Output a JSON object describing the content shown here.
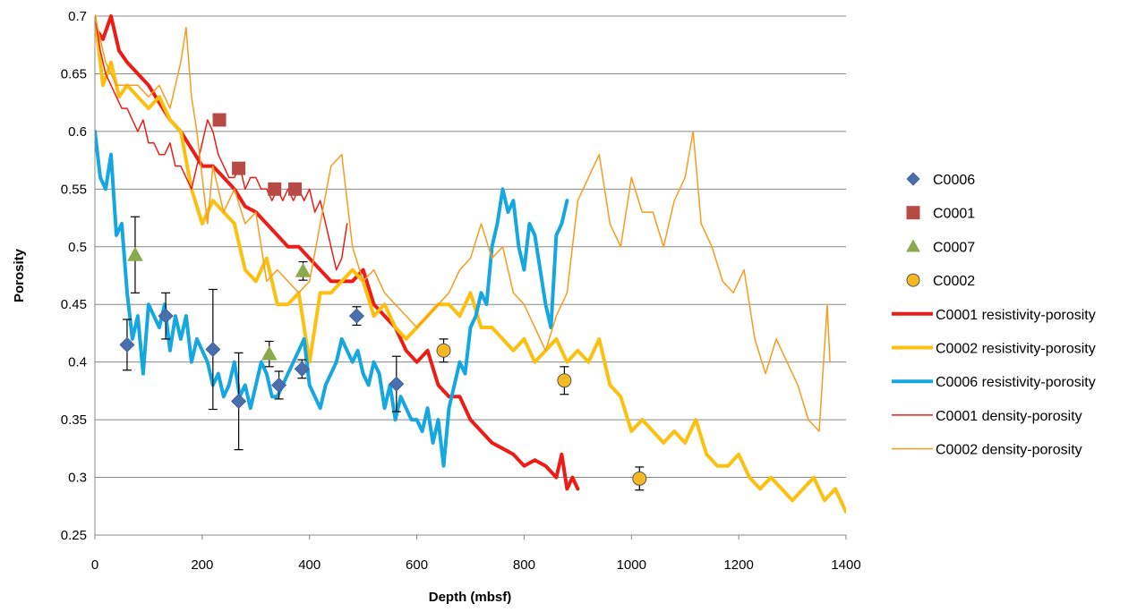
{
  "chart_data": {
    "type": "line",
    "xlabel": "Depth (mbsf)",
    "ylabel": "Porosity",
    "xlim": [
      0,
      1400
    ],
    "ylim": [
      0.25,
      0.7
    ],
    "xticks": [
      "0",
      "200",
      "400",
      "600",
      "800",
      "1000",
      "1200",
      "1400"
    ],
    "yticks": [
      "0.25",
      "0.3",
      "0.35",
      "0.4",
      "0.45",
      "0.5",
      "0.55",
      "0.6",
      "0.65",
      "0.7"
    ],
    "grid": "horizontal",
    "legend_position": "right",
    "marker_series": [
      {
        "name": "C0006",
        "marker": "diamond",
        "color": "#4a6fad",
        "points": [
          {
            "x": 60,
            "y": 0.415,
            "err": 0.022
          },
          {
            "x": 132,
            "y": 0.44,
            "err": 0.02
          },
          {
            "x": 220,
            "y": 0.411,
            "err": 0.052
          },
          {
            "x": 268,
            "y": 0.366,
            "err": 0.042
          },
          {
            "x": 343,
            "y": 0.38,
            "err": 0.012
          },
          {
            "x": 386,
            "y": 0.394,
            "err": 0.008
          },
          {
            "x": 488,
            "y": 0.44,
            "err": 0.008
          },
          {
            "x": 562,
            "y": 0.381,
            "err": 0.024
          }
        ]
      },
      {
        "name": "C0001",
        "marker": "square",
        "color": "#b84a46",
        "points": [
          {
            "x": 232,
            "y": 0.61
          },
          {
            "x": 268,
            "y": 0.568
          },
          {
            "x": 335,
            "y": 0.55
          },
          {
            "x": 373,
            "y": 0.55
          }
        ]
      },
      {
        "name": "C0007",
        "marker": "triangle",
        "color": "#8aaa4e",
        "points": [
          {
            "x": 75,
            "y": 0.493,
            "err": 0.033
          },
          {
            "x": 325,
            "y": 0.407,
            "err": 0.011
          },
          {
            "x": 388,
            "y": 0.479,
            "err": 0.008
          }
        ]
      },
      {
        "name": "C0002",
        "marker": "circle",
        "color": "#f5b820",
        "points": [
          {
            "x": 650,
            "y": 0.41,
            "err": 0.01
          },
          {
            "x": 875,
            "y": 0.384,
            "err": 0.012
          },
          {
            "x": 1015,
            "y": 0.299,
            "err": 0.01
          }
        ]
      }
    ],
    "line_series": [
      {
        "name": "C0001 resistivity-porosity",
        "color": "#ee1c16",
        "width": 4,
        "x": [
          0,
          15,
          30,
          45,
          60,
          80,
          100,
          120,
          140,
          160,
          180,
          200,
          220,
          240,
          260,
          280,
          300,
          320,
          340,
          360,
          380,
          400,
          420,
          440,
          460,
          480,
          500,
          520,
          540,
          560,
          580,
          600,
          620,
          640,
          660,
          680,
          700,
          720,
          740,
          760,
          780,
          800,
          820,
          840,
          860,
          870,
          880,
          890,
          900
        ],
        "y": [
          0.69,
          0.68,
          0.7,
          0.67,
          0.66,
          0.65,
          0.64,
          0.625,
          0.61,
          0.6,
          0.585,
          0.57,
          0.57,
          0.56,
          0.55,
          0.535,
          0.53,
          0.52,
          0.51,
          0.5,
          0.5,
          0.49,
          0.48,
          0.47,
          0.47,
          0.47,
          0.48,
          0.45,
          0.44,
          0.43,
          0.41,
          0.4,
          0.41,
          0.38,
          0.37,
          0.37,
          0.35,
          0.34,
          0.33,
          0.325,
          0.32,
          0.31,
          0.315,
          0.31,
          0.3,
          0.32,
          0.29,
          0.3,
          0.29
        ]
      },
      {
        "name": "C0002 resistivity-porosity",
        "color": "#fcc010",
        "width": 4,
        "x": [
          0,
          15,
          30,
          45,
          60,
          80,
          100,
          120,
          140,
          160,
          180,
          200,
          220,
          240,
          260,
          280,
          300,
          320,
          340,
          360,
          380,
          400,
          420,
          440,
          460,
          480,
          500,
          520,
          540,
          560,
          580,
          600,
          620,
          640,
          660,
          680,
          700,
          720,
          740,
          760,
          780,
          800,
          820,
          840,
          860,
          880,
          900,
          920,
          940,
          960,
          980,
          1000,
          1020,
          1040,
          1060,
          1080,
          1100,
          1120,
          1140,
          1160,
          1180,
          1200,
          1220,
          1240,
          1260,
          1280,
          1300,
          1320,
          1340,
          1360,
          1380,
          1400
        ],
        "y": [
          0.7,
          0.64,
          0.66,
          0.63,
          0.64,
          0.63,
          0.62,
          0.63,
          0.61,
          0.6,
          0.55,
          0.52,
          0.54,
          0.53,
          0.52,
          0.48,
          0.47,
          0.49,
          0.45,
          0.45,
          0.46,
          0.4,
          0.46,
          0.46,
          0.47,
          0.48,
          0.47,
          0.44,
          0.45,
          0.43,
          0.42,
          0.43,
          0.44,
          0.45,
          0.45,
          0.44,
          0.46,
          0.43,
          0.43,
          0.42,
          0.41,
          0.42,
          0.4,
          0.41,
          0.42,
          0.4,
          0.41,
          0.4,
          0.42,
          0.38,
          0.37,
          0.34,
          0.35,
          0.34,
          0.33,
          0.34,
          0.33,
          0.35,
          0.32,
          0.31,
          0.31,
          0.32,
          0.3,
          0.29,
          0.3,
          0.29,
          0.28,
          0.29,
          0.3,
          0.28,
          0.29,
          0.27
        ]
      },
      {
        "name": "C0006 resistivity-porosity",
        "color": "#15a7e0",
        "width": 4,
        "x": [
          0,
          10,
          20,
          30,
          40,
          50,
          60,
          70,
          80,
          90,
          100,
          110,
          120,
          130,
          140,
          150,
          160,
          170,
          180,
          190,
          200,
          210,
          220,
          230,
          240,
          250,
          260,
          270,
          280,
          290,
          300,
          310,
          320,
          330,
          340,
          350,
          360,
          370,
          380,
          390,
          400,
          410,
          420,
          430,
          440,
          450,
          460,
          470,
          480,
          490,
          500,
          510,
          520,
          530,
          540,
          550,
          560,
          570,
          580,
          590,
          600,
          610,
          620,
          630,
          640,
          650,
          660,
          670,
          680,
          690,
          700,
          710,
          720,
          730,
          740,
          750,
          760,
          770,
          780,
          790,
          800,
          810,
          820,
          830,
          840,
          850,
          860,
          870,
          880
        ],
        "y": [
          0.6,
          0.56,
          0.55,
          0.58,
          0.51,
          0.52,
          0.46,
          0.42,
          0.44,
          0.39,
          0.45,
          0.44,
          0.43,
          0.45,
          0.41,
          0.44,
          0.42,
          0.44,
          0.4,
          0.42,
          0.41,
          0.4,
          0.38,
          0.39,
          0.37,
          0.38,
          0.4,
          0.37,
          0.38,
          0.36,
          0.38,
          0.4,
          0.39,
          0.37,
          0.37,
          0.38,
          0.39,
          0.4,
          0.41,
          0.42,
          0.38,
          0.37,
          0.36,
          0.38,
          0.39,
          0.4,
          0.42,
          0.41,
          0.4,
          0.41,
          0.39,
          0.38,
          0.4,
          0.39,
          0.36,
          0.38,
          0.35,
          0.37,
          0.36,
          0.35,
          0.35,
          0.34,
          0.36,
          0.33,
          0.35,
          0.31,
          0.36,
          0.38,
          0.4,
          0.39,
          0.43,
          0.44,
          0.46,
          0.45,
          0.5,
          0.52,
          0.55,
          0.53,
          0.54,
          0.5,
          0.48,
          0.52,
          0.51,
          0.48,
          0.45,
          0.43,
          0.51,
          0.52,
          0.54
        ]
      },
      {
        "name": "C0001 density-porosity",
        "color": "#ee1c16",
        "width": 1.5,
        "x": [
          0,
          10,
          20,
          30,
          40,
          50,
          60,
          70,
          80,
          90,
          100,
          110,
          120,
          130,
          140,
          150,
          160,
          170,
          180,
          190,
          200,
          210,
          220,
          230,
          240,
          250,
          260,
          270,
          280,
          290,
          300,
          310,
          320,
          330,
          340,
          350,
          360,
          370,
          380,
          390,
          400,
          410,
          420,
          430,
          440,
          450,
          460,
          470
        ],
        "y": [
          0.7,
          0.67,
          0.65,
          0.64,
          0.63,
          0.62,
          0.62,
          0.61,
          0.6,
          0.61,
          0.59,
          0.59,
          0.58,
          0.58,
          0.59,
          0.57,
          0.57,
          0.56,
          0.55,
          0.57,
          0.59,
          0.61,
          0.6,
          0.58,
          0.57,
          0.56,
          0.56,
          0.57,
          0.55,
          0.56,
          0.56,
          0.55,
          0.55,
          0.54,
          0.55,
          0.54,
          0.55,
          0.54,
          0.55,
          0.54,
          0.55,
          0.53,
          0.54,
          0.52,
          0.5,
          0.48,
          0.49,
          0.52
        ]
      },
      {
        "name": "C0002 density-porosity",
        "color": "#f79c1c",
        "width": 1.5,
        "x": [
          0,
          20,
          40,
          60,
          80,
          100,
          120,
          140,
          160,
          170,
          180,
          190,
          200,
          210,
          220,
          240,
          260,
          280,
          300,
          320,
          340,
          360,
          380,
          400,
          420,
          440,
          460,
          480,
          500,
          520,
          540,
          560,
          580,
          600,
          620,
          640,
          660,
          680,
          700,
          720,
          740,
          760,
          780,
          800,
          820,
          840,
          860,
          880,
          900,
          920,
          940,
          960,
          980,
          1000,
          1020,
          1040,
          1060,
          1080,
          1100,
          1115,
          1130,
          1150,
          1170,
          1190,
          1210,
          1230,
          1250,
          1270,
          1290,
          1310,
          1330,
          1350,
          1365,
          1370
        ],
        "y": [
          0.7,
          0.66,
          0.64,
          0.64,
          0.64,
          0.63,
          0.64,
          0.62,
          0.66,
          0.69,
          0.63,
          0.6,
          0.56,
          0.52,
          0.57,
          0.53,
          0.55,
          0.52,
          0.53,
          0.47,
          0.48,
          0.47,
          0.46,
          0.47,
          0.52,
          0.57,
          0.58,
          0.5,
          0.47,
          0.48,
          0.46,
          0.45,
          0.44,
          0.43,
          0.44,
          0.45,
          0.46,
          0.48,
          0.49,
          0.52,
          0.49,
          0.5,
          0.46,
          0.45,
          0.43,
          0.41,
          0.44,
          0.46,
          0.54,
          0.56,
          0.58,
          0.52,
          0.5,
          0.56,
          0.53,
          0.53,
          0.5,
          0.54,
          0.56,
          0.6,
          0.52,
          0.5,
          0.47,
          0.46,
          0.48,
          0.42,
          0.39,
          0.42,
          0.4,
          0.38,
          0.35,
          0.34,
          0.45,
          0.4
        ]
      }
    ]
  }
}
